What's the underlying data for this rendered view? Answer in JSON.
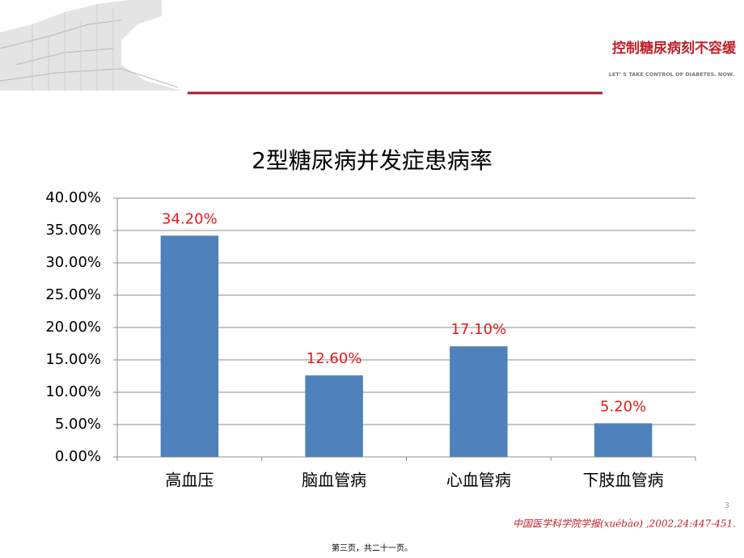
{
  "slide": {
    "slogan": "控制糖尿病刻不容缓",
    "slogan_en": "LET’ S TAKE CONTROL OF DIABETES. NOW.",
    "page_number": "3",
    "citation": "中国医学科学院学报(xuébào) ,2002,24:447-451.",
    "footer": "第三页，共二十一页。"
  },
  "chart_data": {
    "type": "bar",
    "title": "2型糖尿病并发症患病率",
    "categories": [
      "高血压",
      "脑血管病",
      "心血管病",
      "下肢血管病"
    ],
    "values": [
      34.2,
      12.6,
      17.1,
      5.2
    ],
    "value_labels": [
      "34.20%",
      "12.60%",
      "17.10%",
      "5.20%"
    ],
    "color": "#4f81bd",
    "value_label_color": "#e31b1b",
    "ylim": [
      0,
      40
    ],
    "yticks": [
      {
        "value": 0,
        "label": "0.00%"
      },
      {
        "value": 5,
        "label": "5.00%"
      },
      {
        "value": 10,
        "label": "10.00%"
      },
      {
        "value": 15,
        "label": "15.00%"
      },
      {
        "value": 20,
        "label": "20.00%"
      },
      {
        "value": 25,
        "label": "25.00%"
      },
      {
        "value": 30,
        "label": "30.00%"
      },
      {
        "value": 35,
        "label": "35.00%"
      },
      {
        "value": 40,
        "label": "40.00%"
      }
    ],
    "grid": true
  }
}
